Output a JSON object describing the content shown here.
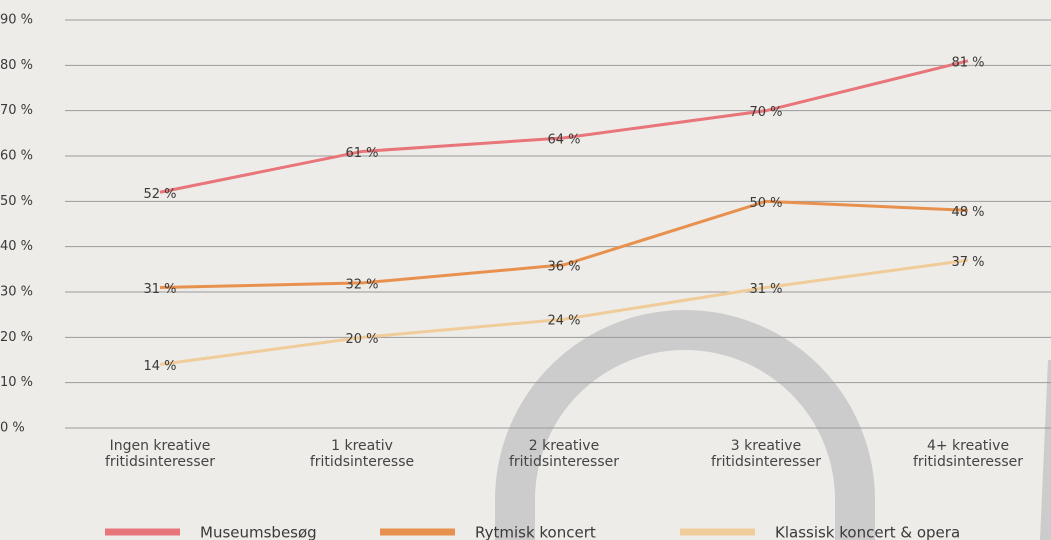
{
  "chart_data": {
    "type": "line",
    "categories": [
      "Ingen kreative\nfritidsinteresser",
      "1 kreativ\nfritidsinteresse",
      "2 kreative\nfritidsinteresser",
      "3 kreative\nfritidsinteresser",
      "4+ kreative\nfritidsinteresser"
    ],
    "series": [
      {
        "name": "Museumsbesøg",
        "color": "#e8757a",
        "values": [
          52,
          61,
          64,
          70,
          81
        ],
        "value_labels": [
          "52 %",
          "61 %",
          "64 %",
          "70 %",
          "81 %"
        ]
      },
      {
        "name": "Rytmisk koncert",
        "color": "#e8914f",
        "values": [
          31,
          32,
          36,
          50,
          48
        ],
        "value_labels": [
          "31 %",
          "32 %",
          "36 %",
          "50 %",
          "48 %"
        ]
      },
      {
        "name": "Klassisk koncert & opera",
        "color": "#f0cc9a",
        "values": [
          14,
          20,
          24,
          31,
          37
        ],
        "value_labels": [
          "14 %",
          "20 %",
          "24 %",
          "31 %",
          "37 %"
        ]
      }
    ],
    "ylim": [
      0,
      90
    ],
    "yticks": [
      {
        "value": 0,
        "label": "0 %"
      },
      {
        "value": 10,
        "label": "10 %"
      },
      {
        "value": 20,
        "label": "20 %"
      },
      {
        "value": 30,
        "label": "30 %"
      },
      {
        "value": 40,
        "label": "40 %"
      },
      {
        "value": 50,
        "label": "50 %"
      },
      {
        "value": 60,
        "label": "60 %"
      },
      {
        "value": 70,
        "label": "70 %"
      },
      {
        "value": 80,
        "label": "80 %"
      },
      {
        "value": 90,
        "label": "90 %"
      }
    ],
    "grid": true
  }
}
